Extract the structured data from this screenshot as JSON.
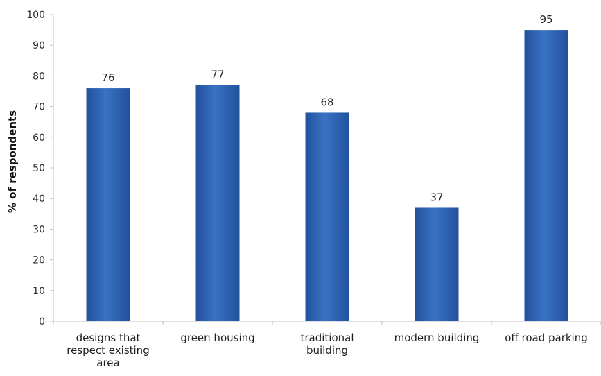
{
  "chart_data": {
    "type": "bar",
    "title": "",
    "xlabel": "",
    "ylabel": "% of respondents",
    "ylim": [
      0,
      100
    ],
    "yticks": [
      0,
      10,
      20,
      30,
      40,
      50,
      60,
      70,
      80,
      90,
      100
    ],
    "categories": [
      [
        "designs that",
        "respect existing",
        "area"
      ],
      [
        "green housing"
      ],
      [
        "traditional",
        "building"
      ],
      [
        "modern building"
      ],
      [
        "off road parking"
      ]
    ],
    "values": [
      76,
      77,
      68,
      37,
      95
    ],
    "data_labels": true,
    "grid": false,
    "legend": "none",
    "bar_color": "#3a72c4",
    "bar_color_dark": "#22519c"
  }
}
